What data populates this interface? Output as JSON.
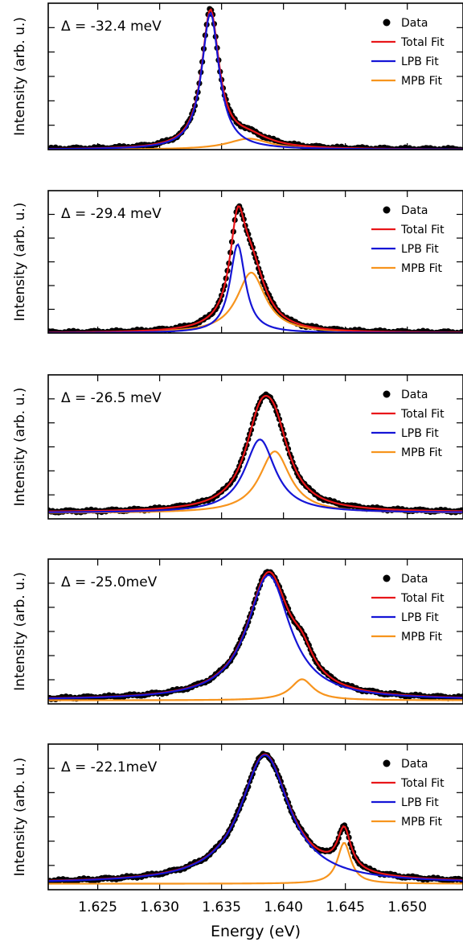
{
  "figure": {
    "xlabel": "Energy (eV)",
    "ylabel": "Intensity (arb. u.)",
    "xticks": [
      "1.625",
      "1.630",
      "1.635",
      "1.640",
      "1.645",
      "1.650"
    ],
    "xtick_values": [
      1.625,
      1.63,
      1.635,
      1.64,
      1.645,
      1.65
    ],
    "xlim": [
      1.621,
      1.6545
    ],
    "legend_labels": [
      "Data",
      "Total Fit",
      "LPB Fit",
      "MPB Fit"
    ],
    "colors": {
      "data": "#000000",
      "total": "#e8161a",
      "lpb": "#1515d6",
      "mpb": "#f7941d"
    }
  },
  "chart_data": [
    {
      "type": "line",
      "title": "Δ = -32.4 meV",
      "xlabel": "",
      "ylabel": "Intensity (arb. u.)",
      "ylim": [
        0,
        1.07
      ],
      "legend": [
        "Data",
        "Total Fit",
        "LPB Fit",
        "MPB Fit"
      ],
      "legend_position": "top-right",
      "baseline": 0.0,
      "components": [
        {
          "name": "LPB Fit",
          "center": 1.6341,
          "amplitude": 1.0,
          "hwhm": 0.00085
        },
        {
          "name": "MPB Fit",
          "center": 1.6372,
          "amplitude": 0.08,
          "hwhm": 0.0021
        }
      ]
    },
    {
      "type": "line",
      "title": "Δ = -29.4 meV",
      "xlabel": "",
      "ylabel": "Intensity (arb. u.)",
      "ylim": [
        0,
        1.06
      ],
      "legend": [
        "Data",
        "Total Fit",
        "LPB Fit",
        "MPB Fit"
      ],
      "legend_position": "top-right",
      "baseline": 0.0,
      "components": [
        {
          "name": "LPB Fit",
          "center": 1.6363,
          "amplitude": 0.66,
          "hwhm": 0.00075
        },
        {
          "name": "MPB Fit",
          "center": 1.6374,
          "amplitude": 0.45,
          "hwhm": 0.0014
        }
      ]
    },
    {
      "type": "line",
      "title": "Δ = -26.5 meV",
      "xlabel": "",
      "ylabel": "Intensity (arb. u.)",
      "ylim": [
        0,
        1.12
      ],
      "legend": [
        "Data",
        "Total Fit",
        "LPB Fit",
        "MPB Fit"
      ],
      "legend_position": "top-right",
      "baseline": 0.05,
      "components": [
        {
          "name": "LPB Fit",
          "center": 1.6381,
          "amplitude": 0.57,
          "hwhm": 0.0015
        },
        {
          "name": "MPB Fit",
          "center": 1.6393,
          "amplitude": 0.48,
          "hwhm": 0.0015
        }
      ]
    },
    {
      "type": "line",
      "title": "Δ = -25.0meV",
      "xlabel": "",
      "ylabel": "Intensity (arb. u.)",
      "ylim": [
        0,
        1.1
      ],
      "legend": [
        "Data",
        "Total Fit",
        "LPB Fit",
        "MPB Fit"
      ],
      "legend_position": "top-right",
      "baseline": 0.03,
      "components": [
        {
          "name": "LPB Fit",
          "center": 1.6388,
          "amplitude": 0.95,
          "hwhm": 0.0021
        },
        {
          "name": "MPB Fit",
          "center": 1.6415,
          "amplitude": 0.16,
          "hwhm": 0.0011
        }
      ]
    },
    {
      "type": "line",
      "title": "Δ = -22.1meV",
      "xlabel": "Energy (eV)",
      "ylabel": "Intensity (arb. u.)",
      "ylim": [
        0,
        1.1
      ],
      "legend": [
        "Data",
        "Total Fit",
        "LPB Fit",
        "MPB Fit"
      ],
      "legend_position": "top-right",
      "baseline": 0.05,
      "components": [
        {
          "name": "LPB Fit",
          "center": 1.6385,
          "amplitude": 0.97,
          "hwhm": 0.0024
        },
        {
          "name": "MPB Fit",
          "center": 1.6449,
          "amplitude": 0.31,
          "hwhm": 0.00065
        }
      ]
    }
  ]
}
